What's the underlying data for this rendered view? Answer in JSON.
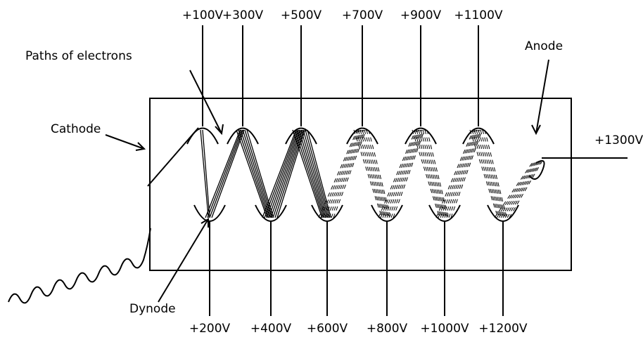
{
  "labels": {
    "paths": "Paths of electrons",
    "cathode": "Cathode",
    "anode": "Anode",
    "dynode": "Dynode"
  },
  "top_voltages": [
    "+100V",
    "+300V",
    "+500V",
    "+700V",
    "+900V",
    "+1100V"
  ],
  "bottom_voltages": [
    "+200V",
    "+400V",
    "+600V",
    "+800V",
    "+1000V",
    "+1200V"
  ],
  "anode_voltage": "+1300V"
}
